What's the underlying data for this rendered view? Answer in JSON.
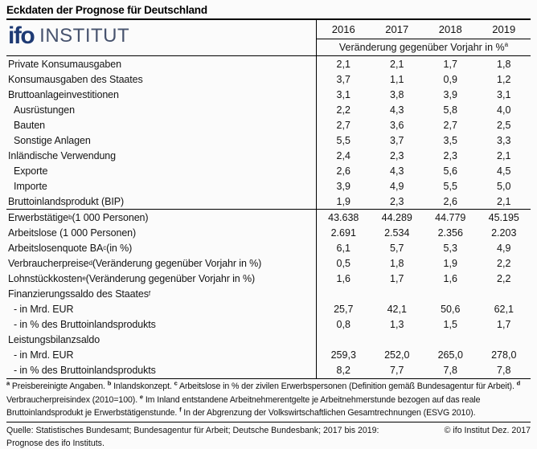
{
  "title": "Eckdaten der Prognose für Deutschland",
  "logo": {
    "ifo": "ifo",
    "institut": "INSTITUT",
    "ifo_color": "#1e3a74",
    "institut_color": "#47536e"
  },
  "header": {
    "years": [
      "2016",
      "2017",
      "2018",
      "2019"
    ],
    "subheader": "Veränderung gegenüber Vorjahr in %",
    "subheader_sup": "a"
  },
  "table": {
    "rows": [
      {
        "pre": "Private Konsumausgaben",
        "sup": "",
        "post": "",
        "indent": 0,
        "divider_after": false,
        "values": [
          "2,1",
          "2,1",
          "1,7",
          "1,8"
        ]
      },
      {
        "pre": "Konsumausgaben des Staates",
        "sup": "",
        "post": "",
        "indent": 0,
        "divider_after": false,
        "values": [
          "3,7",
          "1,1",
          "0,9",
          "1,2"
        ]
      },
      {
        "pre": "Bruttoanlageinvestitionen",
        "sup": "",
        "post": "",
        "indent": 0,
        "divider_after": false,
        "values": [
          "3,1",
          "3,8",
          "3,9",
          "3,1"
        ]
      },
      {
        "pre": "Ausrüstungen",
        "sup": "",
        "post": "",
        "indent": 1,
        "divider_after": false,
        "values": [
          "2,2",
          "4,3",
          "5,8",
          "4,0"
        ]
      },
      {
        "pre": "Bauten",
        "sup": "",
        "post": "",
        "indent": 1,
        "divider_after": false,
        "values": [
          "2,7",
          "3,6",
          "2,7",
          "2,5"
        ]
      },
      {
        "pre": "Sonstige Anlagen",
        "sup": "",
        "post": "",
        "indent": 1,
        "divider_after": false,
        "values": [
          "5,5",
          "3,7",
          "3,5",
          "3,3"
        ]
      },
      {
        "pre": "Inländische Verwendung",
        "sup": "",
        "post": "",
        "indent": 0,
        "divider_after": false,
        "values": [
          "2,4",
          "2,3",
          "2,3",
          "2,1"
        ]
      },
      {
        "pre": "Exporte",
        "sup": "",
        "post": "",
        "indent": 1,
        "divider_after": false,
        "values": [
          "2,6",
          "4,3",
          "5,6",
          "4,5"
        ]
      },
      {
        "pre": "Importe",
        "sup": "",
        "post": "",
        "indent": 1,
        "divider_after": false,
        "values": [
          "3,9",
          "4,9",
          "5,5",
          "5,0"
        ]
      },
      {
        "pre": "Bruttoinlandsprodukt (BIP)",
        "sup": "",
        "post": "",
        "indent": 0,
        "divider_after": true,
        "values": [
          "1,9",
          "2,3",
          "2,6",
          "2,1"
        ]
      },
      {
        "pre": "Erwerbstätige",
        "sup": "b",
        "post": " (1 000 Personen)",
        "indent": 0,
        "divider_after": false,
        "values": [
          "43.638",
          "44.289",
          "44.779",
          "45.195"
        ]
      },
      {
        "pre": "Arbeitslose (1 000 Personen)",
        "sup": "",
        "post": "",
        "indent": 0,
        "divider_after": false,
        "values": [
          "2.691",
          "2.534",
          "2.356",
          "2.203"
        ]
      },
      {
        "pre": "Arbeitslosenquote BA",
        "sup": "c",
        "post": " (in %)",
        "indent": 0,
        "divider_after": false,
        "values": [
          "6,1",
          "5,7",
          "5,3",
          "4,9"
        ]
      },
      {
        "pre": "Verbraucherpreise",
        "sup": "d",
        "post": " (Veränderung gegenüber Vorjahr in %)",
        "indent": 0,
        "divider_after": false,
        "values": [
          "0,5",
          "1,8",
          "1,9",
          "2,2"
        ]
      },
      {
        "pre": "Lohnstückkosten",
        "sup": "e",
        "post": " (Veränderung gegenüber Vorjahr in %)",
        "indent": 0,
        "divider_after": false,
        "values": [
          "1,6",
          "1,7",
          "1,6",
          "2,2"
        ]
      },
      {
        "pre": "Finanzierungssaldo des Staates",
        "sup": "f",
        "post": "",
        "indent": 0,
        "divider_after": false,
        "values": [
          "",
          "",
          "",
          ""
        ]
      },
      {
        "pre": "- in Mrd. EUR",
        "sup": "",
        "post": "",
        "indent": 1,
        "divider_after": false,
        "values": [
          "25,7",
          "42,1",
          "50,6",
          "62,1"
        ]
      },
      {
        "pre": "- in % des Bruttoinlandsprodukts",
        "sup": "",
        "post": "",
        "indent": 1,
        "divider_after": false,
        "values": [
          "0,8",
          "1,3",
          "1,5",
          "1,7"
        ]
      },
      {
        "pre": "Leistungsbilanzsaldo",
        "sup": "",
        "post": "",
        "indent": 0,
        "divider_after": false,
        "values": [
          "",
          "",
          "",
          ""
        ]
      },
      {
        "pre": "- in Mrd. EUR",
        "sup": "",
        "post": "",
        "indent": 1,
        "divider_after": false,
        "values": [
          "259,3",
          "252,0",
          "265,0",
          "278,0"
        ]
      },
      {
        "pre": "- in % des Bruttoinlandsprodukts",
        "sup": "",
        "post": "",
        "indent": 1,
        "divider_after": false,
        "values": [
          "8,2",
          "7,7",
          "7,8",
          "7,8"
        ]
      }
    ]
  },
  "footnotes": [
    {
      "sup": "a",
      "text": "Preisbereinigte Angaben."
    },
    {
      "sup": "b",
      "text": "Inlandskonzept."
    },
    {
      "sup": "c",
      "text": "Arbeitslose in % der zivilen Erwerbspersonen (Definition gemäß Bundesagentur für Arbeit)."
    },
    {
      "sup": "d",
      "text": "Verbraucherpreisindex (2010=100)."
    },
    {
      "sup": "e",
      "text": "Im Inland entstandene Arbeitnehmerentgelte je Arbeitnehmerstunde bezogen auf das reale Bruttoinlandsprodukt je Erwerbstätigenstunde."
    },
    {
      "sup": "f",
      "text": "In der Abgrenzung der Volkswirtschaftlichen Gesamtrechnungen (ESVG 2010)."
    }
  ],
  "source": "Quelle: Statistisches Bundesamt; Bundesagentur für Arbeit; Deutsche Bundesbank; 2017 bis 2019: Prognose des ifo Instituts.",
  "copyright": "© ifo Institut Dez. 2017",
  "chart_data": {
    "type": "table",
    "title": "Eckdaten der Prognose für Deutschland",
    "unit_note": "Veränderung gegenüber Vorjahr in %",
    "columns": [
      2016,
      2017,
      2018,
      2019
    ],
    "rows": [
      {
        "label": "Private Konsumausgaben",
        "values": [
          2.1,
          2.1,
          1.7,
          1.8
        ]
      },
      {
        "label": "Konsumausgaben des Staates",
        "values": [
          3.7,
          1.1,
          0.9,
          1.2
        ]
      },
      {
        "label": "Bruttoanlageinvestitionen",
        "values": [
          3.1,
          3.8,
          3.9,
          3.1
        ]
      },
      {
        "label": "Ausrüstungen",
        "values": [
          2.2,
          4.3,
          5.8,
          4.0
        ]
      },
      {
        "label": "Bauten",
        "values": [
          2.7,
          3.6,
          2.7,
          2.5
        ]
      },
      {
        "label": "Sonstige Anlagen",
        "values": [
          5.5,
          3.7,
          3.5,
          3.3
        ]
      },
      {
        "label": "Inländische Verwendung",
        "values": [
          2.4,
          2.3,
          2.3,
          2.1
        ]
      },
      {
        "label": "Exporte",
        "values": [
          2.6,
          4.3,
          5.6,
          4.5
        ]
      },
      {
        "label": "Importe",
        "values": [
          3.9,
          4.9,
          5.5,
          5.0
        ]
      },
      {
        "label": "Bruttoinlandsprodukt (BIP)",
        "values": [
          1.9,
          2.3,
          2.6,
          2.1
        ]
      },
      {
        "label": "Erwerbstätige (1 000 Personen)",
        "values": [
          43638,
          44289,
          44779,
          45195
        ]
      },
      {
        "label": "Arbeitslose (1 000 Personen)",
        "values": [
          2691,
          2534,
          2356,
          2203
        ]
      },
      {
        "label": "Arbeitslosenquote BA (in %)",
        "values": [
          6.1,
          5.7,
          5.3,
          4.9
        ]
      },
      {
        "label": "Verbraucherpreise (Veränderung gegenüber Vorjahr in %)",
        "values": [
          0.5,
          1.8,
          1.9,
          2.2
        ]
      },
      {
        "label": "Lohnstückkosten (Veränderung gegenüber Vorjahr in %)",
        "values": [
          1.6,
          1.7,
          1.6,
          2.2
        ]
      },
      {
        "label": "Finanzierungssaldo des Staates - in Mrd. EUR",
        "values": [
          25.7,
          42.1,
          50.6,
          62.1
        ]
      },
      {
        "label": "Finanzierungssaldo des Staates - in % des Bruttoinlandsprodukts",
        "values": [
          0.8,
          1.3,
          1.5,
          1.7
        ]
      },
      {
        "label": "Leistungsbilanzsaldo - in Mrd. EUR",
        "values": [
          259.3,
          252.0,
          265.0,
          278.0
        ]
      },
      {
        "label": "Leistungsbilanzsaldo - in % des Bruttoinlandsprodukts",
        "values": [
          8.2,
          7.7,
          7.8,
          7.8
        ]
      }
    ]
  }
}
